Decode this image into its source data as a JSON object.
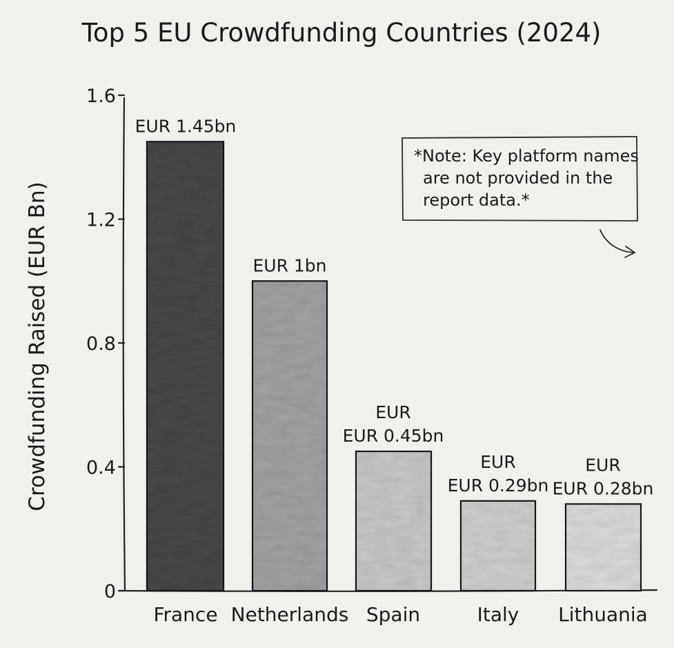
{
  "chart_data": {
    "type": "bar",
    "title": "Top 5 EU Crowdfunding Countries (2024)",
    "xlabel": "",
    "ylabel": "Crowdfunding Raised (EUR Bn)",
    "categories": [
      "France",
      "Netherlands",
      "Spain",
      "Italy",
      "Lithuania"
    ],
    "values": [
      1.45,
      1.0,
      0.45,
      0.29,
      0.28
    ],
    "value_labels": [
      [
        "EUR 1.45bn"
      ],
      [
        "EUR 1bn"
      ],
      [
        "EUR",
        "EUR 0.45bn"
      ],
      [
        "EUR",
        "EUR 0.29bn"
      ],
      [
        "EUR",
        "EUR 0.28bn"
      ]
    ],
    "bar_colors": [
      "#4a4a4a",
      "#a3a3a3",
      "#c9c9c7",
      "#d0d0ce",
      "#dcdcda"
    ],
    "yticks": [
      0,
      0.4,
      0.8,
      1.2,
      1.6
    ],
    "ytick_labels": [
      "0",
      "0.4",
      "0.8",
      "1.2",
      "1.6"
    ],
    "ylim": [
      0,
      1.6
    ],
    "grid": false,
    "legend": "none",
    "annotation": {
      "position": "top-right",
      "lines": [
        "*Note: Key platform names",
        "are not provided in the",
        "report data.*"
      ]
    }
  }
}
